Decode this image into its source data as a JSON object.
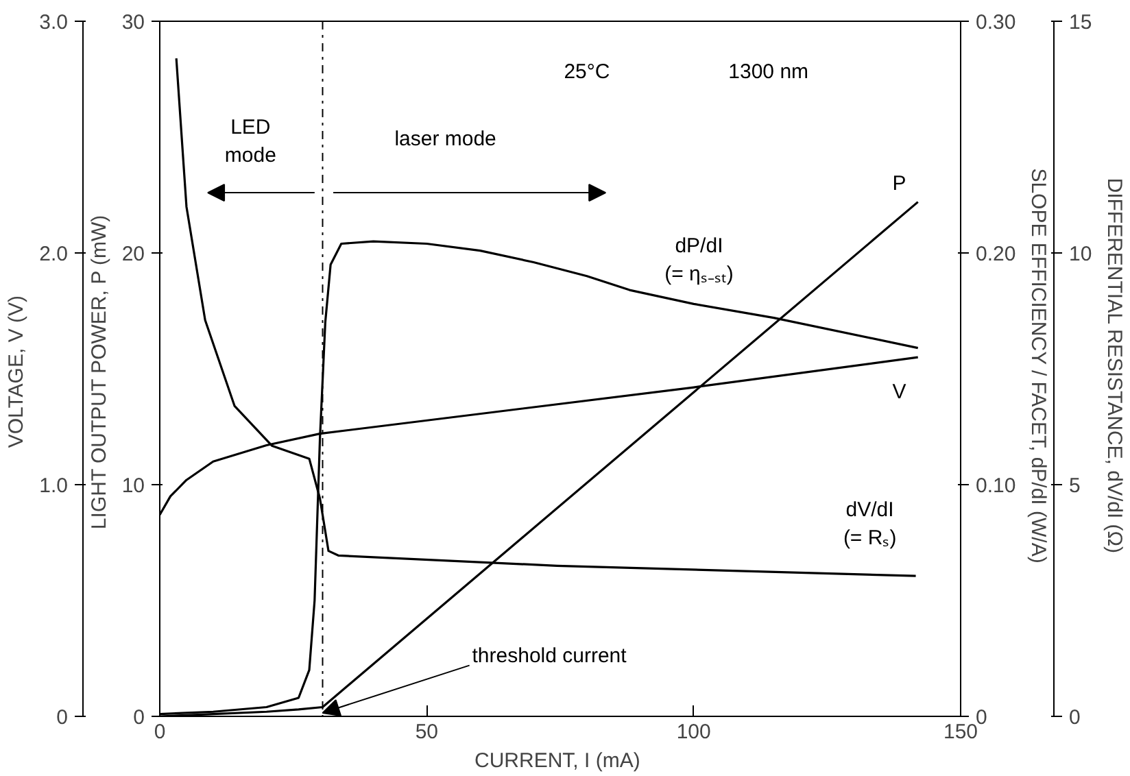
{
  "chart_data": [
    {
      "type": "line",
      "xlabel": "CURRENT, I  (mA)",
      "ylabel": "LIGHT OUTPUT POWER, P  (mW)",
      "y2label": "SLOPE EFFICIENCY / FACET, dP/dI  (W/A)",
      "y3label": "DIFFERENTIAL RESISTANCE, dV/dI  (Ω)",
      "xlim": [
        0,
        150
      ],
      "xticks": [
        0,
        50,
        100,
        150
      ],
      "ylim": [
        0,
        30
      ],
      "yticks": [
        0,
        10,
        20,
        30
      ],
      "y2lim": [
        0,
        0.3
      ],
      "y2ticks": [
        0,
        {
          "value": 0.1,
          "label": "0.10"
        },
        {
          "value": 0.2,
          "label": "0.20"
        },
        {
          "value": 0.3,
          "label": "0.30"
        }
      ],
      "y3lim": [
        0,
        15
      ],
      "y3ticks": [
        0,
        5,
        10,
        15
      ],
      "grid": false,
      "marker": "none",
      "line_style": "solid",
      "series": [
        {
          "name": "P",
          "color": "#000000",
          "x": [
            0,
            10,
            20,
            26,
            30.5,
            142
          ],
          "values": [
            0,
            0.1,
            0.2,
            0.3,
            0.4,
            22.2
          ]
        },
        {
          "name": "dP/dI\n(= ηₛ₋ₛₜ)",
          "color": "#000000",
          "axis": "y2",
          "x": [
            0,
            10,
            20,
            26,
            28,
            29,
            30,
            31,
            32,
            34,
            40,
            50,
            60,
            70,
            80,
            88,
            100,
            115,
            142
          ],
          "values": [
            0.001,
            0.002,
            0.004,
            0.008,
            0.02,
            0.05,
            0.12,
            0.17,
            0.195,
            0.204,
            0.205,
            0.204,
            0.201,
            0.196,
            0.19,
            0.184,
            0.178,
            0.172,
            0.159
          ]
        },
        {
          "name": "dV/dI\n(= Rₛ)",
          "color": "#000000",
          "axis": "y3",
          "x": [
            3.1,
            5,
            8.5,
            14,
            21,
            28,
            30,
            31.6,
            33.5,
            74.4,
            141.6
          ],
          "values": [
            14.2,
            11.0,
            8.55,
            6.7,
            5.84,
            5.56,
            4.7,
            3.57,
            3.47,
            3.25,
            3.03
          ]
        }
      ],
      "ref_lines": [
        {
          "axis": "x",
          "value": 30.5,
          "color": "#000000",
          "line_style": "dashdot",
          "label": "threshold current"
        }
      ],
      "annotations": [
        "25°C",
        "1300 nm",
        "LED\nmode",
        "laser mode"
      ]
    },
    {
      "type": "line",
      "ylabel": "VOLTAGE, V  (V)",
      "xlim": [
        0,
        150
      ],
      "ylim": [
        0,
        3
      ],
      "yticks": [
        0,
        {
          "value": 1,
          "label": "1.0"
        },
        {
          "value": 2,
          "label": "2.0"
        },
        {
          "value": 3,
          "label": "3.0"
        }
      ],
      "tick_labels": "y",
      "marker": "none",
      "line_style": "solid",
      "series": [
        {
          "name": "V",
          "color": "#000000",
          "x": [
            0,
            2,
            5,
            10,
            20,
            30,
            100,
            142
          ],
          "values": [
            0.87,
            0.95,
            1.02,
            1.1,
            1.17,
            1.22,
            1.42,
            1.55
          ]
        }
      ]
    }
  ]
}
